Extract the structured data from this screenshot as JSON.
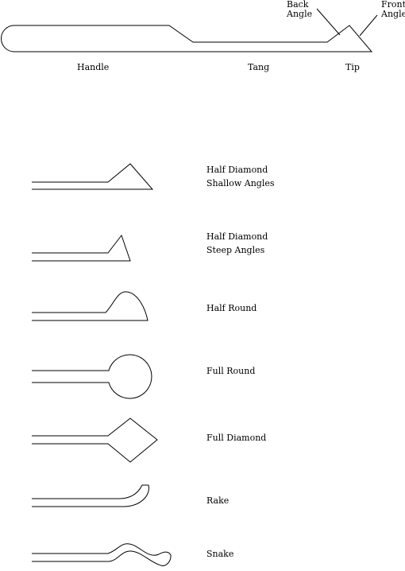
{
  "diagram": {
    "parts_labels": {
      "handle": "Handle",
      "tang": "Tang",
      "tip": "Tip",
      "back_angle": [
        "Back",
        "Angle"
      ],
      "front_angle": [
        "Front",
        "Angle"
      ]
    },
    "pick_types": [
      {
        "lines": [
          "Half Diamond",
          "Shallow Angles"
        ]
      },
      {
        "lines": [
          "Half Diamond",
          "Steep Angles"
        ]
      },
      {
        "lines": [
          "Half Round"
        ]
      },
      {
        "lines": [
          "Full Round"
        ]
      },
      {
        "lines": [
          "Full Diamond"
        ]
      },
      {
        "lines": [
          "Rake"
        ]
      },
      {
        "lines": [
          "Snake"
        ]
      }
    ]
  }
}
